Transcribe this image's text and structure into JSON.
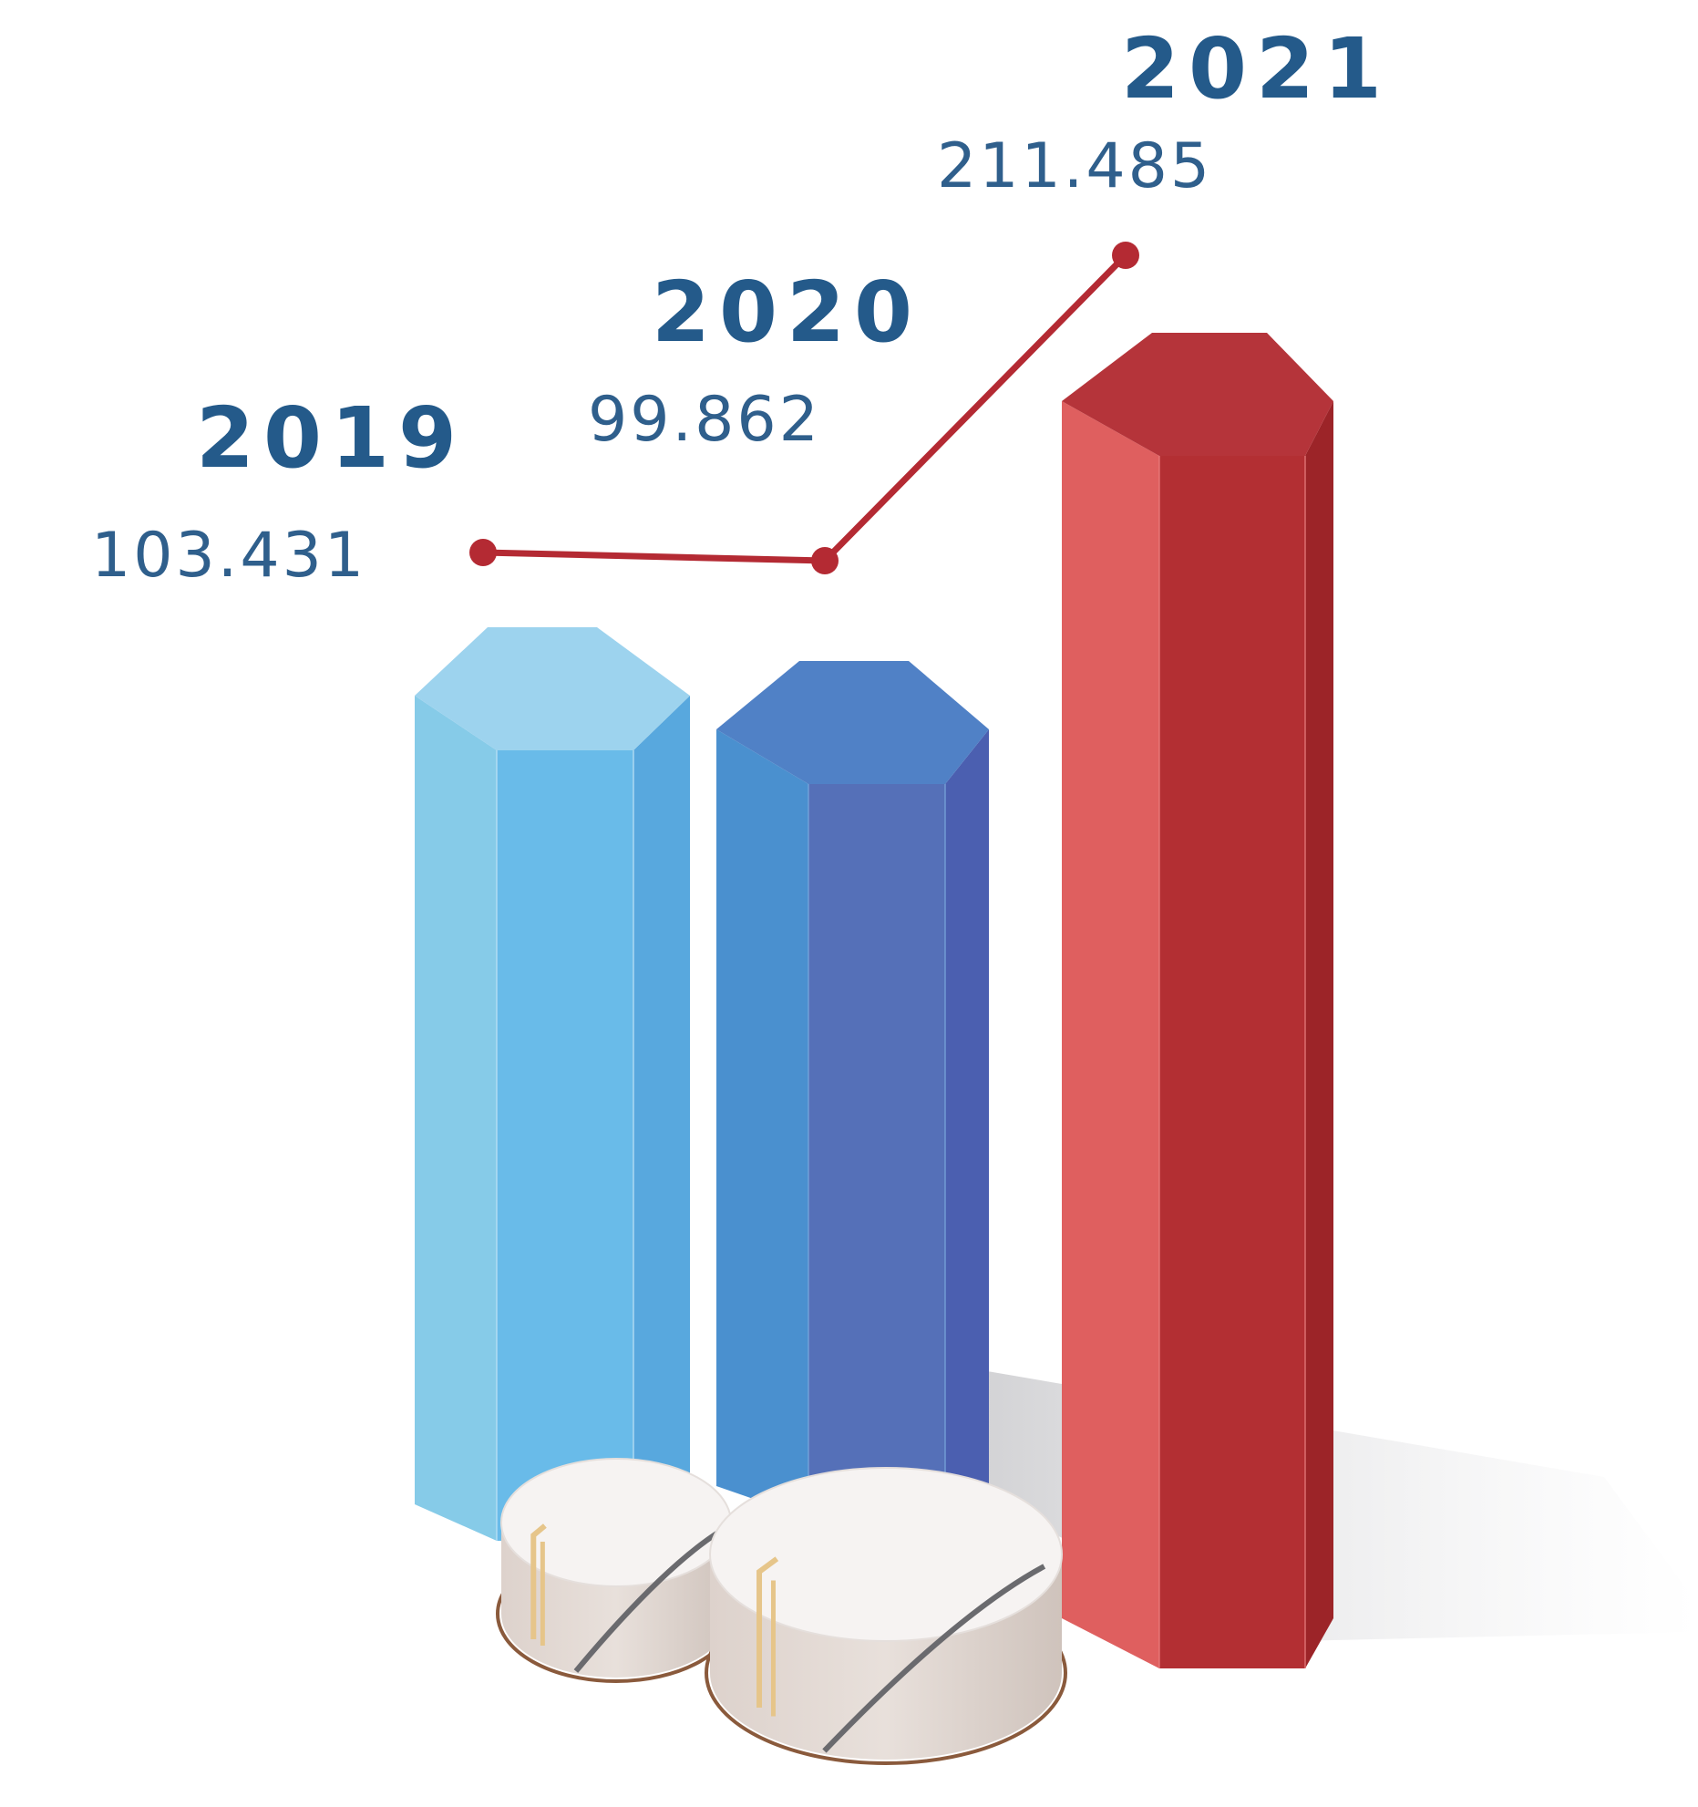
{
  "chart_data": {
    "type": "bar",
    "categories": [
      "2019",
      "2020",
      "2021"
    ],
    "values": [
      103.431,
      99.862,
      211.485
    ],
    "value_labels": [
      "103.431",
      "99.862",
      "211.485"
    ],
    "title": "",
    "xlabel": "",
    "ylabel": "",
    "grid": false,
    "legend": "none",
    "overlay_line": true,
    "colors": {
      "bars": [
        {
          "front": "#69bbe9",
          "left": "#86cbe8",
          "right": "#58a8de",
          "top": "#9dd3ee",
          "edge": "#bfe3f5"
        },
        {
          "front": "#5570b8",
          "left": "#4a90cf",
          "right": "#4b5fb0",
          "top": "#5081c6",
          "edge": "#7aa6dc"
        },
        {
          "front": "#b32f33",
          "left": "#df5f5f",
          "right": "#9c2428",
          "top": "#b5343a",
          "edge": "#e98080"
        }
      ],
      "year_text": "#245a8a",
      "value_text": "#2f5f8c",
      "line": "#b42a33"
    },
    "decoration": "storage-tanks"
  }
}
